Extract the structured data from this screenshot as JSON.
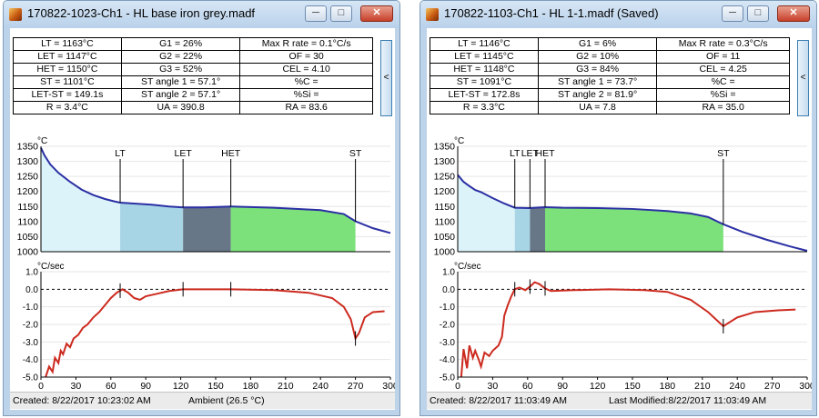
{
  "windows": [
    {
      "title": "170822-1023-Ch1 - HL base iron grey.madf",
      "stats": [
        [
          "LT = 1163°C",
          "G1 = 26%",
          "Max R rate = 0.1°C/s"
        ],
        [
          "LET = 1147°C",
          "G2 = 22%",
          "OF = 30"
        ],
        [
          "HET = 1150°C",
          "G3 = 52%",
          "CEL = 4.10"
        ],
        [
          "ST = 1101°C",
          "ST angle 1 = 57.1°",
          "%C ="
        ],
        [
          "LET-ST = 149.1s",
          "ST angle 2 = 57.1°",
          "%Si ="
        ],
        [
          "R = 3.4°C",
          "UA = 390.8",
          "RA = 83.6"
        ]
      ],
      "side_button": "<",
      "status": [
        "Created: 8/22/2017 10:23:02 AM",
        "Ambient (26.5 °C)"
      ],
      "chart_data": [
        {
          "type": "area",
          "ylabel": "°C",
          "ylim": [
            1000,
            1350
          ],
          "xlim": [
            0,
            300
          ],
          "yticks": [
            "1350",
            "1300",
            "1250",
            "1200",
            "1150",
            "1100",
            "1050",
            "1000"
          ],
          "markers": [
            {
              "label": "LT",
              "x": 68
            },
            {
              "label": "LET",
              "x": 122
            },
            {
              "label": "HET",
              "x": 163
            },
            {
              "label": "ST",
              "x": 270
            }
          ],
          "regions": [
            {
              "from": 0,
              "to": 68,
              "color": "#ddf3fa"
            },
            {
              "from": 68,
              "to": 122,
              "color": "#a8d5e5"
            },
            {
              "from": 122,
              "to": 163,
              "color": "#677788"
            },
            {
              "from": 163,
              "to": 270,
              "color": "#7ce17a"
            }
          ],
          "curve": [
            [
              0,
              1345
            ],
            [
              3,
              1320
            ],
            [
              8,
              1290
            ],
            [
              15,
              1262
            ],
            [
              25,
              1232
            ],
            [
              35,
              1206
            ],
            [
              45,
              1188
            ],
            [
              55,
              1175
            ],
            [
              63,
              1167
            ],
            [
              68,
              1163
            ],
            [
              80,
              1160
            ],
            [
              95,
              1156
            ],
            [
              110,
              1150
            ],
            [
              122,
              1147
            ],
            [
              140,
              1147
            ],
            [
              163,
              1150
            ],
            [
              200,
              1146
            ],
            [
              240,
              1138
            ],
            [
              260,
              1125
            ],
            [
              270,
              1101
            ],
            [
              285,
              1078
            ],
            [
              300,
              1062
            ]
          ]
        },
        {
          "type": "line",
          "ylabel": "°C/sec",
          "ylim": [
            -5,
            1
          ],
          "xlim": [
            0,
            300
          ],
          "xticks": [
            "0",
            "30",
            "60",
            "90",
            "120",
            "150",
            "180",
            "210",
            "240",
            "270",
            "300"
          ],
          "yticks": [
            "1.0",
            "0.0",
            "-1.0",
            "-2.0",
            "-3.0",
            "-4.0",
            "-5.0"
          ],
          "ticks": [
            68,
            122,
            163,
            270
          ],
          "curve": [
            [
              4,
              -5.0
            ],
            [
              7,
              -4.4
            ],
            [
              10,
              -4.7
            ],
            [
              12,
              -3.9
            ],
            [
              15,
              -4.2
            ],
            [
              17,
              -3.5
            ],
            [
              19,
              -3.7
            ],
            [
              22,
              -3.1
            ],
            [
              25,
              -3.3
            ],
            [
              28,
              -2.8
            ],
            [
              32,
              -2.6
            ],
            [
              36,
              -2.2
            ],
            [
              40,
              -2.0
            ],
            [
              45,
              -1.6
            ],
            [
              50,
              -1.3
            ],
            [
              55,
              -0.9
            ],
            [
              60,
              -0.5
            ],
            [
              65,
              -0.2
            ],
            [
              70,
              0.0
            ],
            [
              75,
              -0.2
            ],
            [
              80,
              -0.5
            ],
            [
              85,
              -0.6
            ],
            [
              90,
              -0.4
            ],
            [
              100,
              -0.25
            ],
            [
              110,
              -0.1
            ],
            [
              122,
              0.0
            ],
            [
              140,
              0.0
            ],
            [
              163,
              0.0
            ],
            [
              200,
              -0.05
            ],
            [
              230,
              -0.2
            ],
            [
              250,
              -0.5
            ],
            [
              260,
              -1.0
            ],
            [
              266,
              -1.7
            ],
            [
              270,
              -2.8
            ],
            [
              273,
              -2.5
            ],
            [
              278,
              -1.6
            ],
            [
              285,
              -1.3
            ],
            [
              295,
              -1.25
            ]
          ]
        }
      ]
    },
    {
      "title": "170822-1103-Ch1 - HL 1-1.madf (Saved)",
      "stats": [
        [
          "LT = 1146°C",
          "G1 = 6%",
          "Max R rate = 0.3°C/s"
        ],
        [
          "LET = 1145°C",
          "G2 = 10%",
          "OF = 11"
        ],
        [
          "HET = 1148°C",
          "G3 = 84%",
          "CEL = 4.25"
        ],
        [
          "ST = 1091°C",
          "ST angle 1 = 73.7°",
          "%C ="
        ],
        [
          "LET-ST = 172.8s",
          "ST angle 2 = 81.9°",
          "%Si ="
        ],
        [
          "R = 3.3°C",
          "UA = 7.8",
          "RA = 35.0"
        ]
      ],
      "side_button": "<",
      "status": [
        "Created: 8/22/2017 11:03:49 AM",
        "Last Modified:8/22/2017 11:03:49 AM"
      ],
      "chart_data": [
        {
          "type": "area",
          "ylabel": "°C",
          "ylim": [
            1000,
            1350
          ],
          "xlim": [
            0,
            300
          ],
          "yticks": [
            "1350",
            "1300",
            "1250",
            "1200",
            "1150",
            "1100",
            "1050",
            "1000"
          ],
          "markers": [
            {
              "label": "LT",
              "x": 49
            },
            {
              "label": "LET",
              "x": 62
            },
            {
              "label": "HET",
              "x": 75
            },
            {
              "label": "ST",
              "x": 228
            }
          ],
          "regions": [
            {
              "from": 0,
              "to": 49,
              "color": "#ddf3fa"
            },
            {
              "from": 49,
              "to": 62,
              "color": "#a8d5e5"
            },
            {
              "from": 62,
              "to": 75,
              "color": "#677788"
            },
            {
              "from": 75,
              "to": 228,
              "color": "#7ce17a"
            }
          ],
          "curve": [
            [
              0,
              1255
            ],
            [
              5,
              1232
            ],
            [
              10,
              1218
            ],
            [
              15,
              1205
            ],
            [
              20,
              1198
            ],
            [
              30,
              1178
            ],
            [
              40,
              1160
            ],
            [
              49,
              1146
            ],
            [
              62,
              1145
            ],
            [
              75,
              1148
            ],
            [
              90,
              1146
            ],
            [
              120,
              1145
            ],
            [
              150,
              1142
            ],
            [
              180,
              1135
            ],
            [
              200,
              1127
            ],
            [
              215,
              1115
            ],
            [
              228,
              1091
            ],
            [
              245,
              1065
            ],
            [
              265,
              1040
            ],
            [
              285,
              1018
            ],
            [
              300,
              1003
            ]
          ]
        },
        {
          "type": "line",
          "ylabel": "°C/sec",
          "ylim": [
            -5,
            1
          ],
          "xlim": [
            0,
            300
          ],
          "xticks": [
            "0",
            "30",
            "60",
            "90",
            "120",
            "150",
            "180",
            "210",
            "240",
            "270",
            "300"
          ],
          "yticks": [
            "1.0",
            "0.0",
            "-1.0",
            "-2.0",
            "-3.0",
            "-4.0",
            "-5.0"
          ],
          "ticks": [
            49,
            62,
            75,
            228
          ],
          "curve": [
            [
              3,
              -5.0
            ],
            [
              5,
              -3.4
            ],
            [
              8,
              -4.5
            ],
            [
              10,
              -3.2
            ],
            [
              13,
              -3.9
            ],
            [
              15,
              -3.5
            ],
            [
              18,
              -4.0
            ],
            [
              20,
              -4.4
            ],
            [
              23,
              -3.6
            ],
            [
              27,
              -3.8
            ],
            [
              30,
              -3.5
            ],
            [
              35,
              -3.2
            ],
            [
              38,
              -2.7
            ],
            [
              40,
              -1.5
            ],
            [
              43,
              -0.9
            ],
            [
              46,
              -0.4
            ],
            [
              49,
              0.0
            ],
            [
              53,
              0.1
            ],
            [
              58,
              -0.05
            ],
            [
              62,
              0.15
            ],
            [
              66,
              0.4
            ],
            [
              70,
              0.3
            ],
            [
              75,
              0.05
            ],
            [
              80,
              -0.1
            ],
            [
              100,
              -0.05
            ],
            [
              130,
              0.0
            ],
            [
              160,
              -0.05
            ],
            [
              180,
              -0.15
            ],
            [
              200,
              -0.6
            ],
            [
              215,
              -1.3
            ],
            [
              228,
              -2.1
            ],
            [
              240,
              -1.6
            ],
            [
              255,
              -1.3
            ],
            [
              275,
              -1.2
            ],
            [
              290,
              -1.15
            ]
          ]
        }
      ]
    }
  ]
}
